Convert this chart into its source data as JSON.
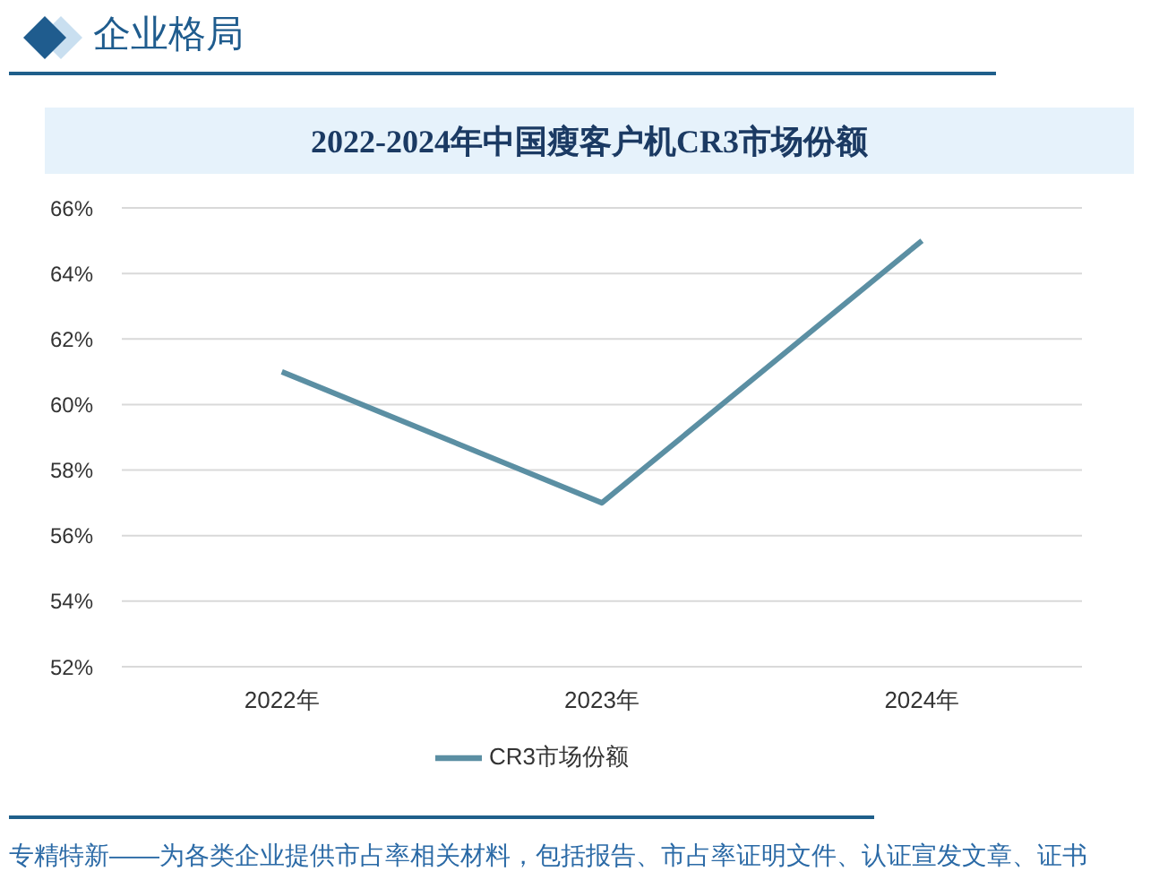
{
  "chart_data": {
    "type": "line",
    "title": "2022-2024年中国瘦客户机CR3市场份额",
    "categories": [
      "2022年",
      "2023年",
      "2024年"
    ],
    "series": [
      {
        "name": "CR3市场份额",
        "color": "#5b8fa3",
        "values": [
          61,
          57,
          65
        ]
      }
    ],
    "ylim": [
      52,
      66
    ],
    "yticks": [
      {
        "value": 52,
        "label": "52%"
      },
      {
        "value": 54,
        "label": "54%"
      },
      {
        "value": 56,
        "label": "56%"
      },
      {
        "value": 58,
        "label": "58%"
      },
      {
        "value": 60,
        "label": "60%"
      },
      {
        "value": 62,
        "label": "62%"
      },
      {
        "value": 64,
        "label": "64%"
      },
      {
        "value": 66,
        "label": "66%"
      }
    ],
    "grid": "y",
    "legend": "bottom",
    "marker": "none",
    "annotations": [
      "企业格局",
      "专精特新——为各类企业提供市占率相关材料，包括报告、市占率证明文件、认证宣发文章、证书"
    ]
  }
}
